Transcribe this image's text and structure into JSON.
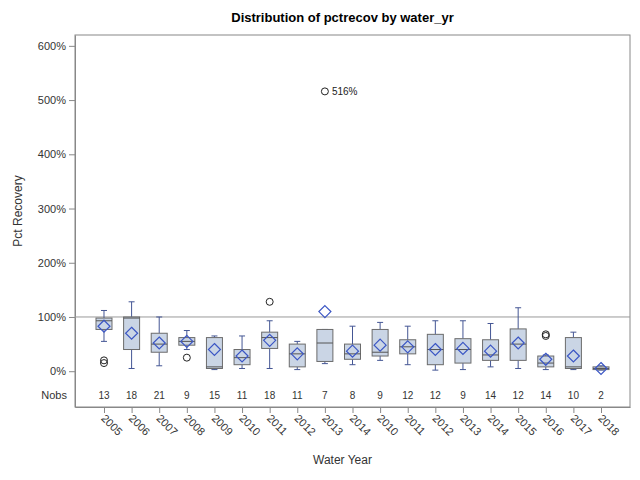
{
  "chart_data": {
    "type": "box",
    "title": "Distribution of pctrecov by water_yr",
    "x_label": "Water Year",
    "y_label": "Pct Recovery",
    "categories": [
      "2005",
      "2006",
      "2007",
      "2008",
      "2009",
      "2010",
      "2011",
      "2012",
      "2013",
      "2014",
      "2010",
      "2011",
      "2012",
      "2013",
      "2014",
      "2015",
      "2016",
      "2017",
      "2018"
    ],
    "boxes": [
      {
        "min": 55,
        "q1": 77,
        "median": 93,
        "q3": 98,
        "max": 112,
        "mean": 83,
        "outliers": [
          20,
          15
        ]
      },
      {
        "min": 5,
        "q1": 40,
        "median": 98,
        "q3": 100,
        "max": 128,
        "mean": 70,
        "outliers": []
      },
      {
        "min": 10,
        "q1": 35,
        "median": 50,
        "q3": 70,
        "max": 100,
        "mean": 52,
        "outliers": []
      },
      {
        "min": 40,
        "q1": 48,
        "median": 55,
        "q3": 62,
        "max": 75,
        "mean": 55,
        "outliers": [
          25
        ]
      },
      {
        "min": 3,
        "q1": 5,
        "median": 8,
        "q3": 62,
        "max": 65,
        "mean": 40,
        "outliers": []
      },
      {
        "min": 5,
        "q1": 12,
        "median": 25,
        "q3": 40,
        "max": 65,
        "mean": 28,
        "outliers": []
      },
      {
        "min": 5,
        "q1": 42,
        "median": 62,
        "q3": 72,
        "max": 93,
        "mean": 57,
        "outliers": [
          128
        ]
      },
      {
        "min": 3,
        "q1": 8,
        "median": 32,
        "q3": 50,
        "max": 55,
        "mean": 32,
        "outliers": []
      },
      {
        "min": 14,
        "q1": 18,
        "median": 52,
        "q3": 77,
        "max": 77,
        "mean": 110,
        "outliers": [
          516
        ]
      },
      {
        "min": 12,
        "q1": 22,
        "median": 32,
        "q3": 50,
        "max": 83,
        "mean": 37,
        "outliers": []
      },
      {
        "min": 20,
        "q1": 28,
        "median": 35,
        "q3": 77,
        "max": 90,
        "mean": 48,
        "outliers": []
      },
      {
        "min": 12,
        "q1": 32,
        "median": 45,
        "q3": 58,
        "max": 83,
        "mean": 45,
        "outliers": []
      },
      {
        "min": 2,
        "q1": 12,
        "median": 40,
        "q3": 68,
        "max": 93,
        "mean": 40,
        "outliers": []
      },
      {
        "min": 3,
        "q1": 15,
        "median": 40,
        "q3": 60,
        "max": 93,
        "mean": 42,
        "outliers": []
      },
      {
        "min": 8,
        "q1": 20,
        "median": 30,
        "q3": 58,
        "max": 88,
        "mean": 37,
        "outliers": []
      },
      {
        "min": 5,
        "q1": 20,
        "median": 50,
        "q3": 78,
        "max": 117,
        "mean": 52,
        "outliers": []
      },
      {
        "min": 3,
        "q1": 8,
        "median": 15,
        "q3": 28,
        "max": 30,
        "mean": 22,
        "outliers": [
          65,
          68
        ]
      },
      {
        "min": 3,
        "q1": 5,
        "median": 8,
        "q3": 62,
        "max": 72,
        "mean": 28,
        "outliers": []
      },
      {
        "min": 2,
        "q1": 3,
        "median": 5,
        "q3": 8,
        "max": 10,
        "mean": 5,
        "outliers": []
      }
    ],
    "nobs_label": "Nobs",
    "nobs": [
      13,
      18,
      21,
      9,
      15,
      11,
      18,
      11,
      7,
      8,
      9,
      12,
      12,
      9,
      14,
      12,
      14,
      10,
      2
    ],
    "reference_line": 100,
    "annotations": [
      {
        "text": "516%",
        "category": 8,
        "value": 516
      }
    ],
    "color": "#cad5e5",
    "ylim": [
      -66,
      620
    ],
    "yticks": [
      {
        "value": 0,
        "label": "0%"
      },
      {
        "value": 100,
        "label": "100%"
      },
      {
        "value": 200,
        "label": "200%"
      },
      {
        "value": 300,
        "label": "300%"
      },
      {
        "value": 400,
        "label": "400%"
      },
      {
        "value": 500,
        "label": "500%"
      },
      {
        "value": 600,
        "label": "600%"
      }
    ],
    "grid": false
  }
}
